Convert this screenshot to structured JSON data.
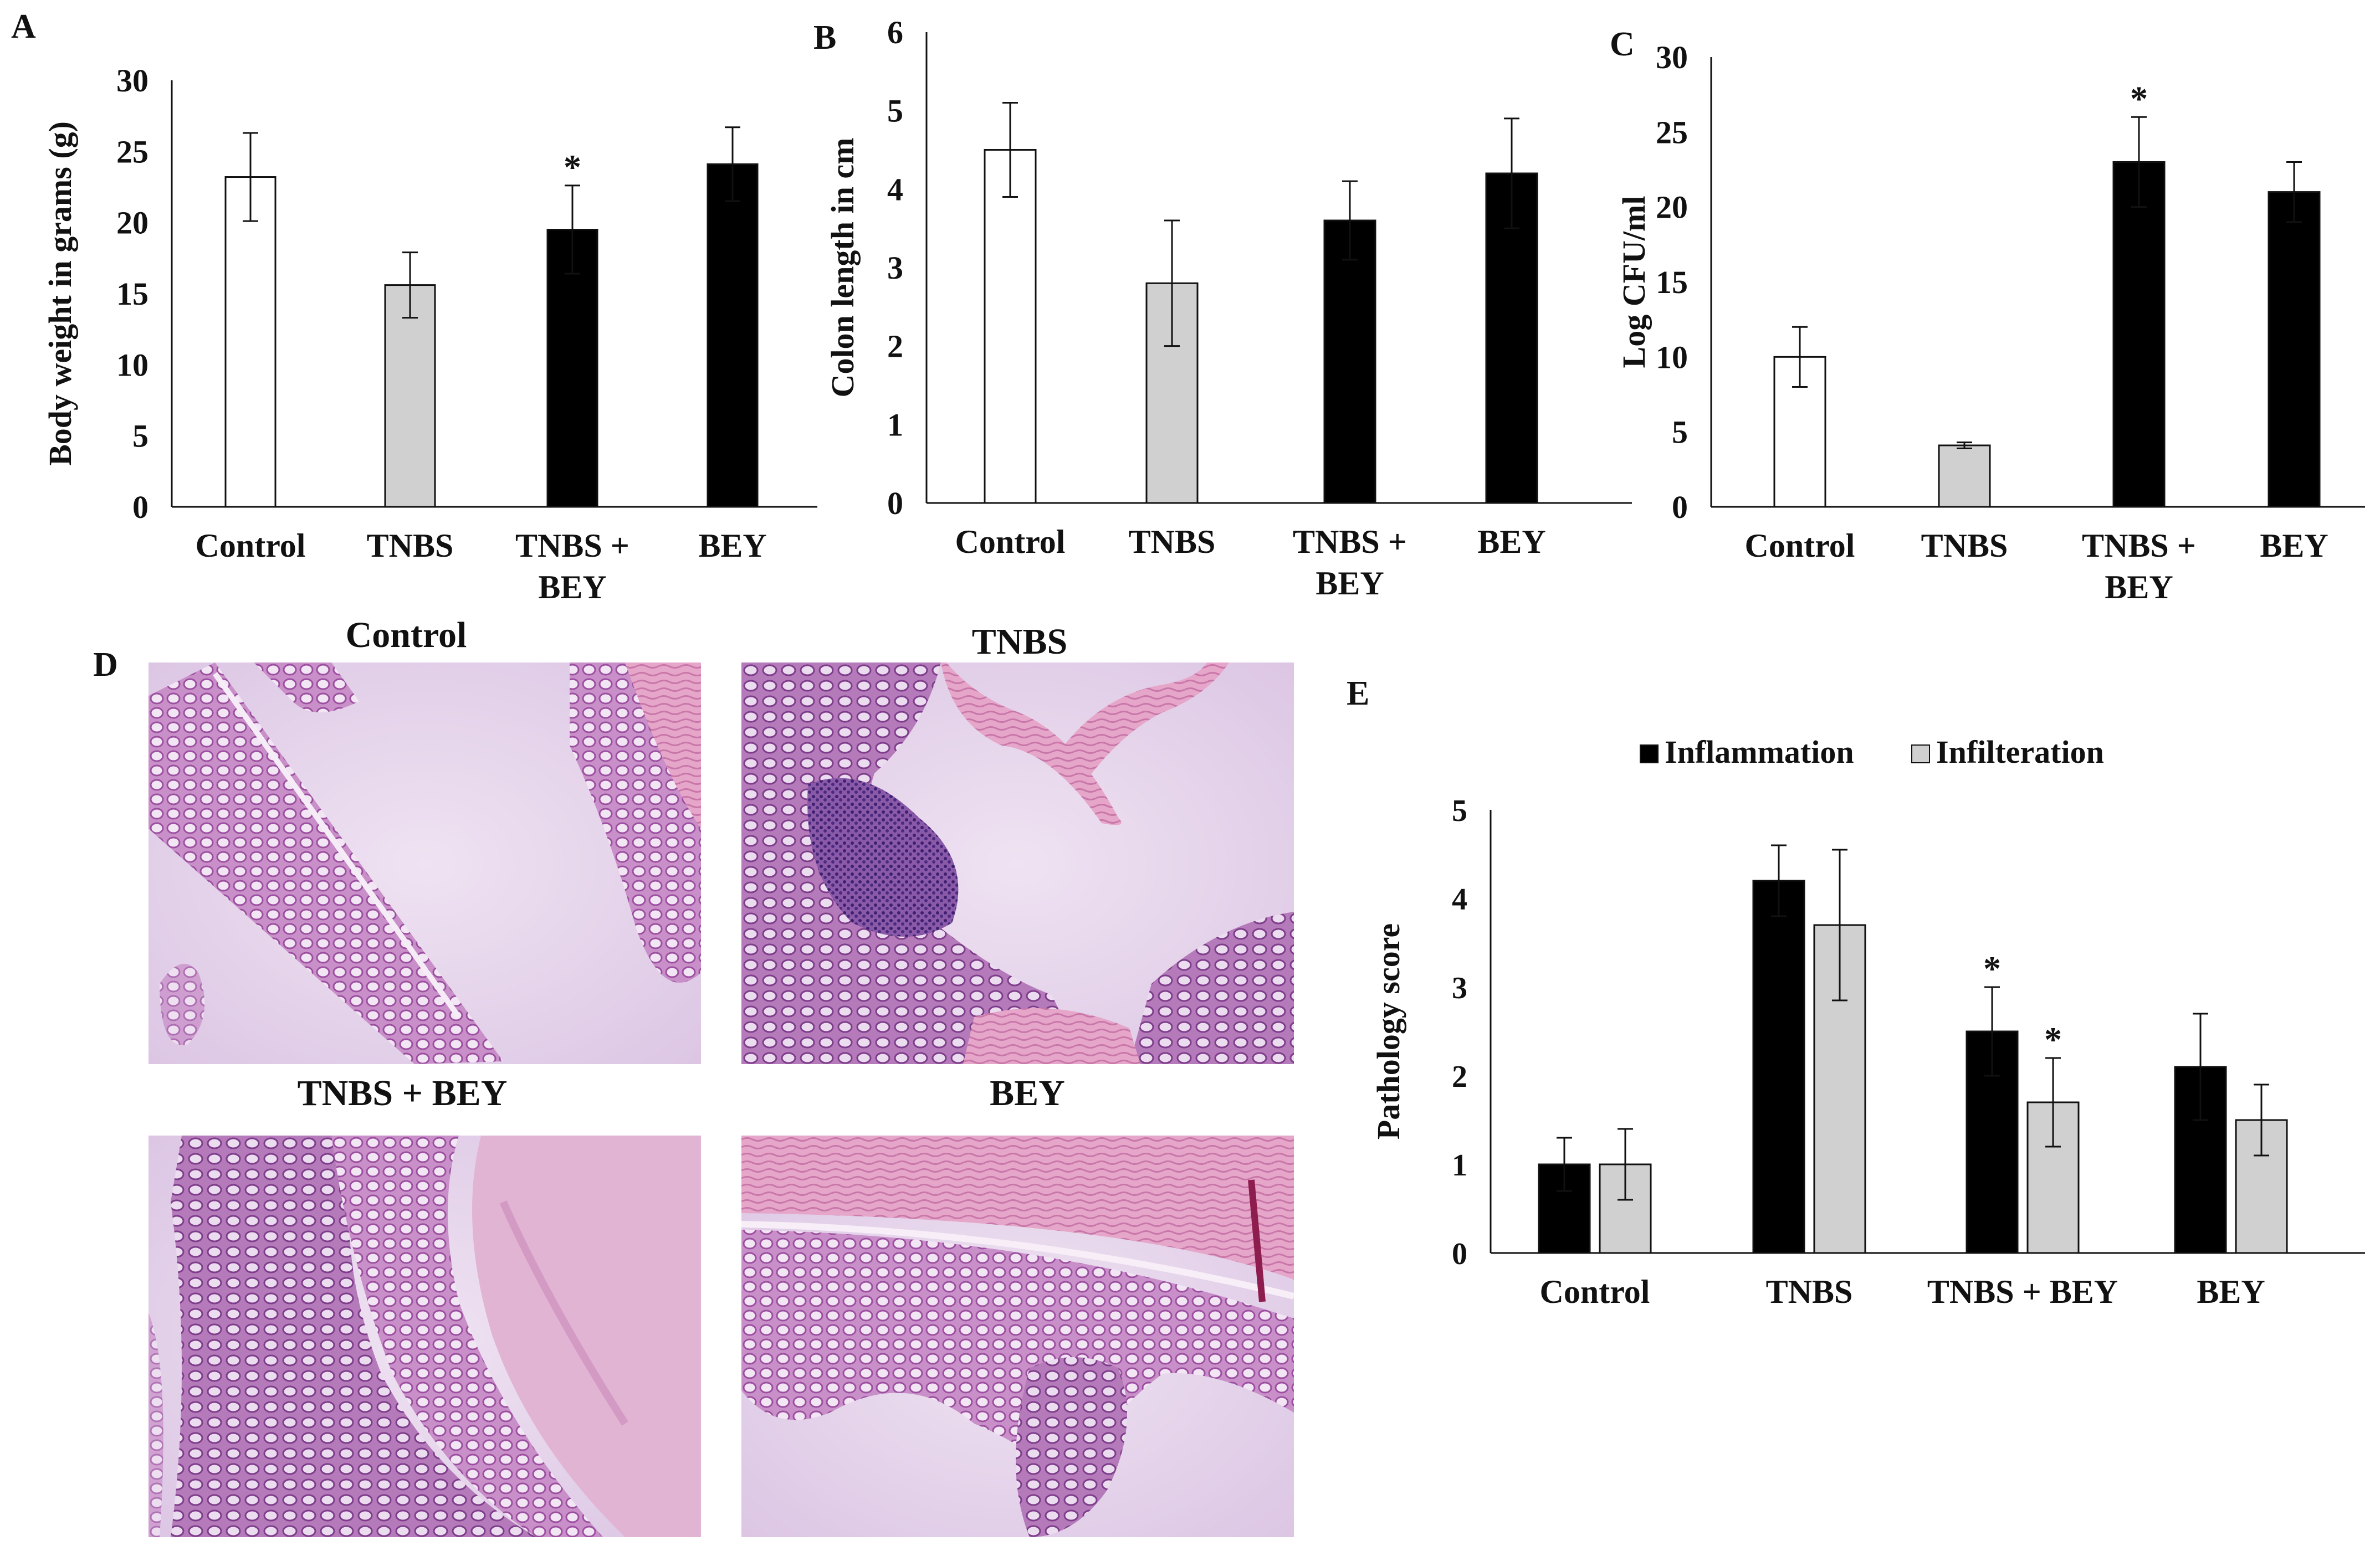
{
  "panel_labels": {
    "a": "A",
    "b": "B",
    "c": "C",
    "d": "D",
    "e": "E"
  },
  "colors": {
    "control": "#ffffff",
    "tnbs": "#d0d0d0",
    "treated": "#000000",
    "axis": "#111111",
    "inflammation": "#000000",
    "infilteration": "#d0d0d0"
  },
  "chart_data": [
    {
      "id": "A",
      "type": "bar",
      "title": "",
      "ylabel": "Body weight in grams (g)",
      "xlabel": "",
      "ylim": [
        0,
        30
      ],
      "yticks": [
        "0",
        "5",
        "10",
        "15",
        "20",
        "25",
        "30"
      ],
      "categories": [
        "Control",
        "TNBS",
        "TNBS +|BEY",
        "BEY"
      ],
      "values": [
        23.2,
        15.6,
        19.5,
        24.1
      ],
      "errors": [
        3.1,
        2.3,
        3.1,
        2.6
      ],
      "fills": [
        "control",
        "tnbs",
        "treated",
        "treated"
      ],
      "significance": [
        "",
        "",
        "*",
        ""
      ]
    },
    {
      "id": "B",
      "type": "bar",
      "title": "",
      "ylabel": "Colon length in cm",
      "xlabel": "",
      "ylim": [
        0,
        6
      ],
      "yticks": [
        "0",
        "1",
        "2",
        "3",
        "4",
        "5",
        "6"
      ],
      "categories": [
        "Control",
        "TNBS",
        "TNBS +|BEY",
        "BEY"
      ],
      "values": [
        4.5,
        2.8,
        3.6,
        4.2
      ],
      "errors": [
        0.6,
        0.8,
        0.5,
        0.7
      ],
      "fills": [
        "control",
        "tnbs",
        "treated",
        "treated"
      ],
      "significance": [
        "",
        "",
        "",
        ""
      ]
    },
    {
      "id": "C",
      "type": "bar",
      "title": "",
      "ylabel": "Log CFU/ml",
      "xlabel": "",
      "ylim": [
        0,
        30
      ],
      "yticks": [
        "0",
        "5",
        "10",
        "15",
        "20",
        "25",
        "30"
      ],
      "categories": [
        "Control",
        "TNBS",
        "TNBS +|BEY",
        "BEY"
      ],
      "values": [
        10,
        4.1,
        23,
        21
      ],
      "errors": [
        2,
        0.2,
        3,
        2
      ],
      "fills": [
        "control",
        "tnbs",
        "treated",
        "treated"
      ],
      "significance": [
        "",
        "",
        "*",
        ""
      ]
    },
    {
      "id": "E",
      "type": "bar",
      "title": "",
      "ylabel": "Pathology score",
      "xlabel": "",
      "ylim": [
        0,
        5
      ],
      "yticks": [
        "0",
        "1",
        "2",
        "3",
        "4",
        "5"
      ],
      "categories": [
        "Control",
        "TNBS",
        "TNBS + BEY",
        "BEY"
      ],
      "legend_position": "top",
      "series": [
        {
          "name": "Inflammation",
          "fill": "inflammation",
          "values": [
            1.0,
            4.2,
            2.5,
            2.1
          ],
          "errors": [
            0.3,
            0.4,
            0.5,
            0.6
          ],
          "significance": [
            "",
            "",
            "*",
            ""
          ]
        },
        {
          "name": "Infilteration",
          "fill": "infilteration",
          "values": [
            1.0,
            3.7,
            1.7,
            1.5
          ],
          "errors": [
            0.4,
            0.85,
            0.5,
            0.4
          ],
          "significance": [
            "",
            "",
            "*",
            ""
          ]
        }
      ]
    }
  ],
  "histology": {
    "panel_label": "D",
    "images": [
      {
        "title": "Control",
        "icon": "histology-image"
      },
      {
        "title": "TNBS",
        "icon": "histology-image"
      },
      {
        "title": "TNBS + BEY",
        "icon": "histology-image"
      },
      {
        "title": "BEY",
        "icon": "histology-image"
      }
    ]
  }
}
